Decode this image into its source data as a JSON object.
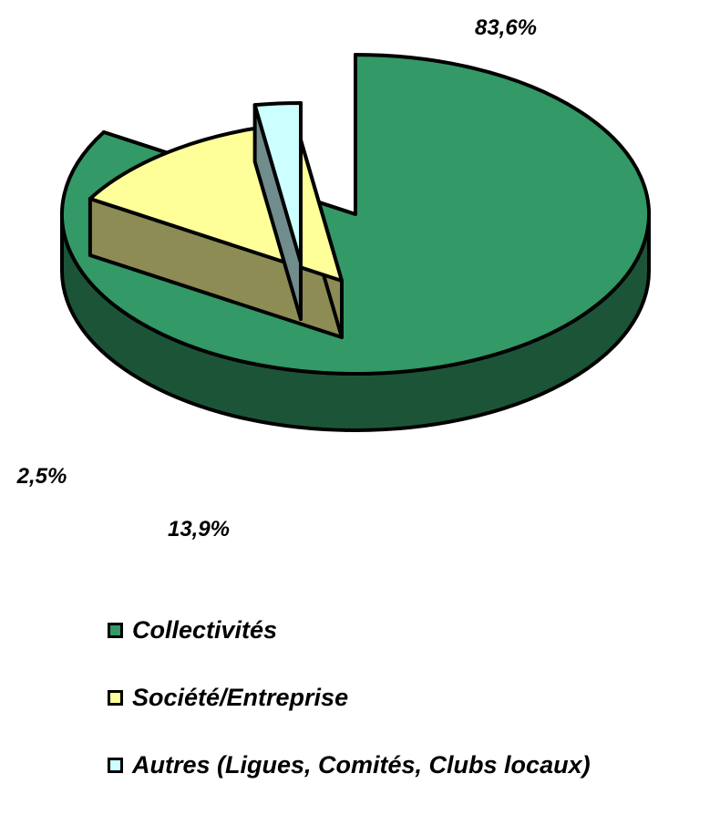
{
  "chart_data": {
    "type": "pie",
    "three_d": true,
    "exploded": true,
    "categories": [
      "Collectivités",
      "Société/Entreprise",
      "Autres (Ligues, Comités, Clubs locaux)"
    ],
    "values": [
      83.6,
      13.9,
      2.5
    ],
    "value_labels": [
      "83,6%",
      "13,9%",
      "2,5%"
    ],
    "colors": [
      "#339966",
      "#FFFF99",
      "#CCFFFF"
    ],
    "legend_position": "bottom",
    "title": ""
  }
}
